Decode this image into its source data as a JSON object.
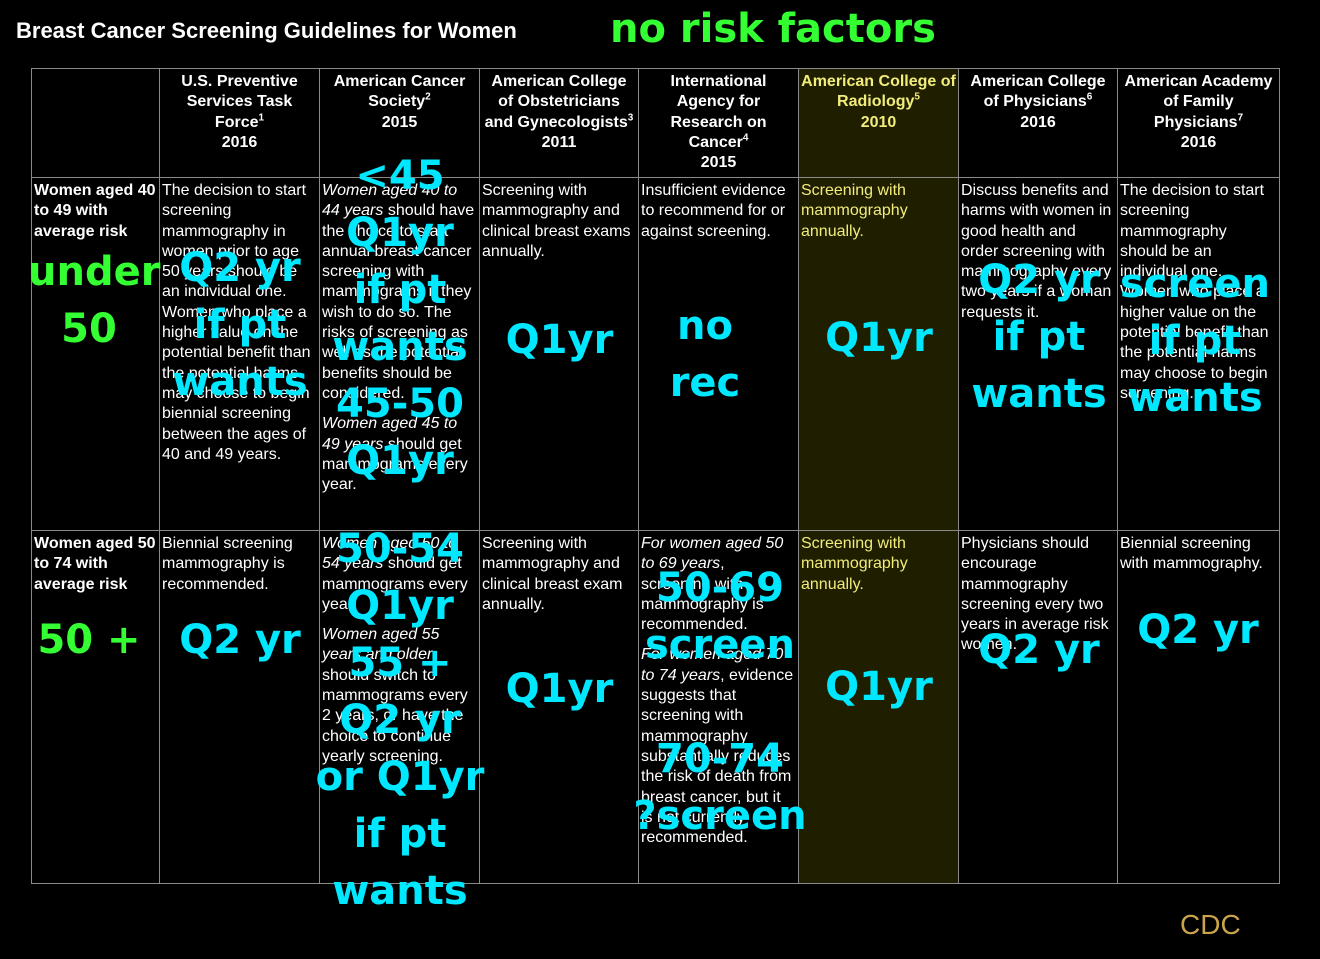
{
  "title": "Breast Cancer Screening Guidelines for Women",
  "subtitle": "no risk factors",
  "credit": "CDC",
  "columns": [
    {
      "name": "U.S. Preventive Services Task Force",
      "ref": "1",
      "year": "2016"
    },
    {
      "name": "American Cancer Society",
      "ref": "2",
      "year": "2015"
    },
    {
      "name": "American College of Obstetricians and Gynecologists",
      "ref": "3",
      "year": "2011"
    },
    {
      "name": "International Agency for Research on Cancer",
      "ref": "4",
      "year": "2015"
    },
    {
      "name": "American College of Radiology",
      "ref": "5",
      "year": "2010"
    },
    {
      "name": "American College of Physicians",
      "ref": "6",
      "year": "2016"
    },
    {
      "name": "American Academy of Family Physicians",
      "ref": "7",
      "year": "2016"
    }
  ],
  "rows": [
    {
      "label": "Women aged 40 to 49 with average risk",
      "cells": [
        "The decision to start screening mammography in women prior to age 50 years should be an individual one. Women who place a higher value on the potential benefit than the potential harms may choose to begin biennial screening between the ages of 40 and 49 years.",
        "",
        "Screening with mammography and clinical breast exams annually.",
        "Insufficient evidence to recommend for or against screening.",
        "Screening with mammography annually.",
        "Discuss benefits and harms with women in good health and order screening with mammography every two years if a woman requests it.",
        "The decision to start screening mammography should be an individual one. Women who place a higher value on the potential benefit than the potential harms may choose to begin screening."
      ],
      "acs": [
        {
          "style": "italic",
          "text": "Women aged 40 to 44 years"
        },
        {
          "style": "normal",
          "text": " should have the choice to start annual breast cancer screening with mammograms if they wish to do so. The risks of screening as well as the potential benefits should be considered."
        },
        {
          "style": "break",
          "text": ""
        },
        {
          "style": "italic",
          "text": "Women aged 45 to 49 years"
        },
        {
          "style": "normal",
          "text": " should get mammograms every year."
        }
      ]
    },
    {
      "label": "Women aged 50 to 74 with average risk",
      "cells": [
        "Biennial screening mammography is recommended.",
        "",
        "Screening with mammography and clinical breast exam annually.",
        "",
        "Screening with mammography annually.",
        "Physicians should encourage mammography screening every two years in average risk women.",
        "Biennial screening with mammography."
      ],
      "acs": [
        {
          "style": "italic",
          "text": "Women aged 50 to 54 years"
        },
        {
          "style": "normal",
          "text": " should get mammograms every year."
        },
        {
          "style": "break",
          "text": ""
        },
        {
          "style": "italic",
          "text": "Women aged 55 years and older"
        },
        {
          "style": "normal",
          "text": " should switch to mammograms every 2 years, or have the choice to continue yearly screening."
        }
      ],
      "iarc": [
        {
          "style": "italic",
          "text": "For women aged 50 to 69 years"
        },
        {
          "style": "normal",
          "text": ", screening with mammography is recommended."
        },
        {
          "style": "break",
          "text": ""
        },
        {
          "style": "italic",
          "text": "For women aged 70 to 74 years"
        },
        {
          "style": "normal",
          "text": ", evidence suggests that screening with mammography substantially reduces the risk of death from breast cancer, but it is not currently recommended."
        }
      ]
    }
  ],
  "overlays": {
    "row1_label": "under\n50",
    "row2_label": "50 +",
    "uspstf_40": "Q2 yr\nif pt\nwants",
    "acs_40": "<45\nQ1yr\nif pt\nwants\n45-50\nQ1yr",
    "acog_40": "Q1yr",
    "iarc_40": "no\nrec",
    "acr_40": "Q1yr",
    "acp_40": "Q2 yr\nif pt\nwants",
    "aafp_40": "screen\nif pt\nwants",
    "uspstf_50": "Q2 yr",
    "acs_50": "50-54\nQ1yr\n55 +\nQ2 yr\nor Q1yr\nif pt\nwants",
    "acog_50": "Q1yr",
    "iarc_50": "50-69\nscreen\n\n70-74\n?screen",
    "acr_50": "Q1yr",
    "acp_50": "Q2 yr",
    "aafp_50": "Q2 yr"
  }
}
